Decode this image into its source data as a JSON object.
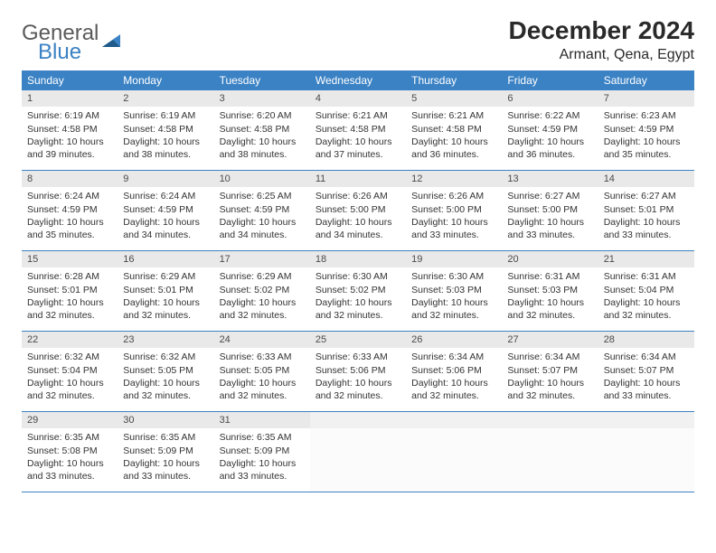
{
  "logo": {
    "word1": "General",
    "word2": "Blue"
  },
  "title": "December 2024",
  "location": "Armant, Qena, Egypt",
  "colors": {
    "header_bg": "#3b82c4",
    "header_text": "#ffffff",
    "daynum_bg": "#e9e9e9",
    "border": "#3b82c4",
    "logo_gray": "#5a5a5a",
    "logo_blue": "#3b82c4"
  },
  "weekdays": [
    "Sunday",
    "Monday",
    "Tuesday",
    "Wednesday",
    "Thursday",
    "Friday",
    "Saturday"
  ],
  "grid": {
    "rows": 5,
    "cols": 7,
    "first_day_col": 0,
    "days_in_month": 31
  },
  "days": [
    {
      "n": 1,
      "sunrise": "6:19 AM",
      "sunset": "4:58 PM",
      "daylight": "10 hours and 39 minutes."
    },
    {
      "n": 2,
      "sunrise": "6:19 AM",
      "sunset": "4:58 PM",
      "daylight": "10 hours and 38 minutes."
    },
    {
      "n": 3,
      "sunrise": "6:20 AM",
      "sunset": "4:58 PM",
      "daylight": "10 hours and 38 minutes."
    },
    {
      "n": 4,
      "sunrise": "6:21 AM",
      "sunset": "4:58 PM",
      "daylight": "10 hours and 37 minutes."
    },
    {
      "n": 5,
      "sunrise": "6:21 AM",
      "sunset": "4:58 PM",
      "daylight": "10 hours and 36 minutes."
    },
    {
      "n": 6,
      "sunrise": "6:22 AM",
      "sunset": "4:59 PM",
      "daylight": "10 hours and 36 minutes."
    },
    {
      "n": 7,
      "sunrise": "6:23 AM",
      "sunset": "4:59 PM",
      "daylight": "10 hours and 35 minutes."
    },
    {
      "n": 8,
      "sunrise": "6:24 AM",
      "sunset": "4:59 PM",
      "daylight": "10 hours and 35 minutes."
    },
    {
      "n": 9,
      "sunrise": "6:24 AM",
      "sunset": "4:59 PM",
      "daylight": "10 hours and 34 minutes."
    },
    {
      "n": 10,
      "sunrise": "6:25 AM",
      "sunset": "4:59 PM",
      "daylight": "10 hours and 34 minutes."
    },
    {
      "n": 11,
      "sunrise": "6:26 AM",
      "sunset": "5:00 PM",
      "daylight": "10 hours and 34 minutes."
    },
    {
      "n": 12,
      "sunrise": "6:26 AM",
      "sunset": "5:00 PM",
      "daylight": "10 hours and 33 minutes."
    },
    {
      "n": 13,
      "sunrise": "6:27 AM",
      "sunset": "5:00 PM",
      "daylight": "10 hours and 33 minutes."
    },
    {
      "n": 14,
      "sunrise": "6:27 AM",
      "sunset": "5:01 PM",
      "daylight": "10 hours and 33 minutes."
    },
    {
      "n": 15,
      "sunrise": "6:28 AM",
      "sunset": "5:01 PM",
      "daylight": "10 hours and 32 minutes."
    },
    {
      "n": 16,
      "sunrise": "6:29 AM",
      "sunset": "5:01 PM",
      "daylight": "10 hours and 32 minutes."
    },
    {
      "n": 17,
      "sunrise": "6:29 AM",
      "sunset": "5:02 PM",
      "daylight": "10 hours and 32 minutes."
    },
    {
      "n": 18,
      "sunrise": "6:30 AM",
      "sunset": "5:02 PM",
      "daylight": "10 hours and 32 minutes."
    },
    {
      "n": 19,
      "sunrise": "6:30 AM",
      "sunset": "5:03 PM",
      "daylight": "10 hours and 32 minutes."
    },
    {
      "n": 20,
      "sunrise": "6:31 AM",
      "sunset": "5:03 PM",
      "daylight": "10 hours and 32 minutes."
    },
    {
      "n": 21,
      "sunrise": "6:31 AM",
      "sunset": "5:04 PM",
      "daylight": "10 hours and 32 minutes."
    },
    {
      "n": 22,
      "sunrise": "6:32 AM",
      "sunset": "5:04 PM",
      "daylight": "10 hours and 32 minutes."
    },
    {
      "n": 23,
      "sunrise": "6:32 AM",
      "sunset": "5:05 PM",
      "daylight": "10 hours and 32 minutes."
    },
    {
      "n": 24,
      "sunrise": "6:33 AM",
      "sunset": "5:05 PM",
      "daylight": "10 hours and 32 minutes."
    },
    {
      "n": 25,
      "sunrise": "6:33 AM",
      "sunset": "5:06 PM",
      "daylight": "10 hours and 32 minutes."
    },
    {
      "n": 26,
      "sunrise": "6:34 AM",
      "sunset": "5:06 PM",
      "daylight": "10 hours and 32 minutes."
    },
    {
      "n": 27,
      "sunrise": "6:34 AM",
      "sunset": "5:07 PM",
      "daylight": "10 hours and 32 minutes."
    },
    {
      "n": 28,
      "sunrise": "6:34 AM",
      "sunset": "5:07 PM",
      "daylight": "10 hours and 33 minutes."
    },
    {
      "n": 29,
      "sunrise": "6:35 AM",
      "sunset": "5:08 PM",
      "daylight": "10 hours and 33 minutes."
    },
    {
      "n": 30,
      "sunrise": "6:35 AM",
      "sunset": "5:09 PM",
      "daylight": "10 hours and 33 minutes."
    },
    {
      "n": 31,
      "sunrise": "6:35 AM",
      "sunset": "5:09 PM",
      "daylight": "10 hours and 33 minutes."
    }
  ],
  "labels": {
    "sunrise": "Sunrise:",
    "sunset": "Sunset:",
    "daylight": "Daylight:"
  }
}
